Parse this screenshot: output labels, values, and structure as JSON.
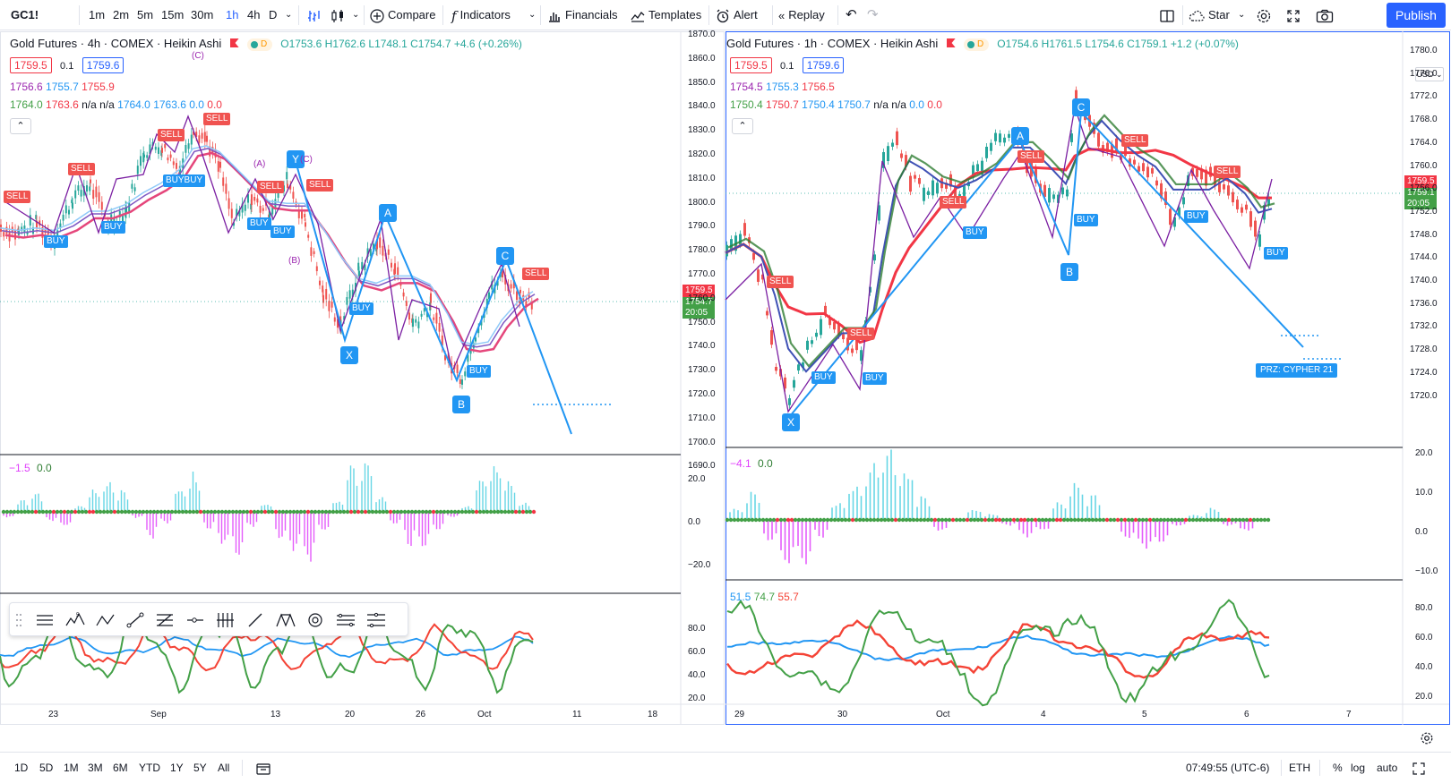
{
  "toolbar": {
    "symbol": "GC1!",
    "intervals": [
      "1m",
      "2m",
      "5m",
      "15m",
      "30m",
      "1h",
      "4h",
      "D"
    ],
    "compare": "Compare",
    "indicators": "Indicators",
    "financials": "Financials",
    "templates": "Templates",
    "alert": "Alert",
    "replay": "Replay",
    "star": "Star",
    "publish": "Publish"
  },
  "left_chart": {
    "title": "Gold Futures · 4h · COMEX · Heikin Ashi",
    "flag_d": "D",
    "ohlc": {
      "o": "O1753.6",
      "h": "H1762.6",
      "l": "L1748.1",
      "c": "C1754.7",
      "chg": "+4.6 (+0.26%)"
    },
    "bid": "1759.5",
    "spread": "0.1",
    "ask": "1759.6",
    "ma_row": [
      "1756.6",
      "1755.7",
      "1755.9"
    ],
    "ind_row": [
      "1764.0",
      "1763.6",
      "n/a",
      "n/a",
      "1764.0",
      "1763.6",
      "0.0",
      "0.0"
    ],
    "price_ticks": [
      "1870.0",
      "1860.0",
      "1850.0",
      "1840.0",
      "1830.0",
      "1820.0",
      "1810.0",
      "1800.0",
      "1790.0",
      "1780.0",
      "1770.0",
      "1760.0",
      "1750.0",
      "1740.0",
      "1730.0",
      "1720.0",
      "1710.0",
      "1700.0",
      "1690.0"
    ],
    "price_tag_current": "1759.5",
    "price_tag_close": "1754.7",
    "price_tag_timer": "20:05",
    "osc_label": [
      "−1.5",
      "0.0"
    ],
    "osc_ticks": [
      "20.0",
      "0.0",
      "−20.0"
    ],
    "rsi_ticks": [
      "80.0",
      "60.0",
      "40.0",
      "20.0"
    ],
    "x_labels": [
      "23",
      "Sep",
      "13",
      "20",
      "26",
      "Oct",
      "11",
      "18"
    ],
    "points": {
      "x": "X",
      "a": "A",
      "b": "B",
      "c": "C",
      "y": "Y"
    },
    "waves": [
      "(C)",
      "(A)",
      "(C)",
      "(B)"
    ],
    "sell": "SELL",
    "buy": "BUY",
    "buybuy": "BUYBUY"
  },
  "right_chart": {
    "title": "Gold Futures · 1h · COMEX · Heikin Ashi",
    "flag_d": "D",
    "ohlc": {
      "o": "O1754.6",
      "h": "H1761.5",
      "l": "L1754.6",
      "c": "C1759.1",
      "chg": "+1.2 (+0.07%)"
    },
    "bid": "1759.5",
    "spread": "0.1",
    "ask": "1759.6",
    "ma_row": [
      "1754.5",
      "1755.3",
      "1756.5"
    ],
    "ind_row": [
      "1750.4",
      "1750.7",
      "1750.4",
      "1750.7",
      "n/a",
      "n/a",
      "0.0",
      "0.0"
    ],
    "currency": "USD",
    "price_ticks": [
      "1780.0",
      "1776.0",
      "1772.0",
      "1768.0",
      "1764.0",
      "1760.0",
      "1756.0",
      "1752.0",
      "1748.0",
      "1744.0",
      "1740.0",
      "1736.0",
      "1732.0",
      "1728.0",
      "1724.0",
      "1720.0"
    ],
    "price_tag_current": "1759.5",
    "price_tag_close": "1759.1",
    "price_tag_timer": "20:05",
    "osc_label": [
      "−4.1",
      "0.0"
    ],
    "osc_ticks": [
      "20.0",
      "10.0",
      "0.0",
      "−10.0"
    ],
    "rsi_label": [
      "51.5",
      "74.7",
      "55.7"
    ],
    "rsi_ticks": [
      "80.0",
      "60.0",
      "40.0",
      "20.0"
    ],
    "x_labels": [
      "29",
      "30",
      "Oct",
      "4",
      "5",
      "6",
      "7"
    ],
    "points": {
      "x": "X",
      "a": "A",
      "b": "B",
      "c": "C"
    },
    "prz": "PRZ: CYPHER 21",
    "sell": "SELL",
    "buy": "BUY"
  },
  "bottom_bar": {
    "ranges": [
      "1D",
      "5D",
      "1M",
      "3M",
      "6M",
      "YTD",
      "1Y",
      "5Y",
      "All"
    ],
    "time": "07:49:55 (UTC-6)",
    "session": "ETH",
    "pct": "%",
    "log": "log",
    "auto": "auto"
  },
  "colors": {
    "accent": "#2962ff",
    "sell": "#f05350",
    "buy": "#2196f3",
    "up": "#4caf50",
    "down": "#f23645",
    "ma_pink": "#e5467b",
    "ma_purple": "#9c27b0",
    "rsi_green": "#43a047",
    "rsi_red": "#f44336",
    "rsi_blue": "#2196f3"
  }
}
